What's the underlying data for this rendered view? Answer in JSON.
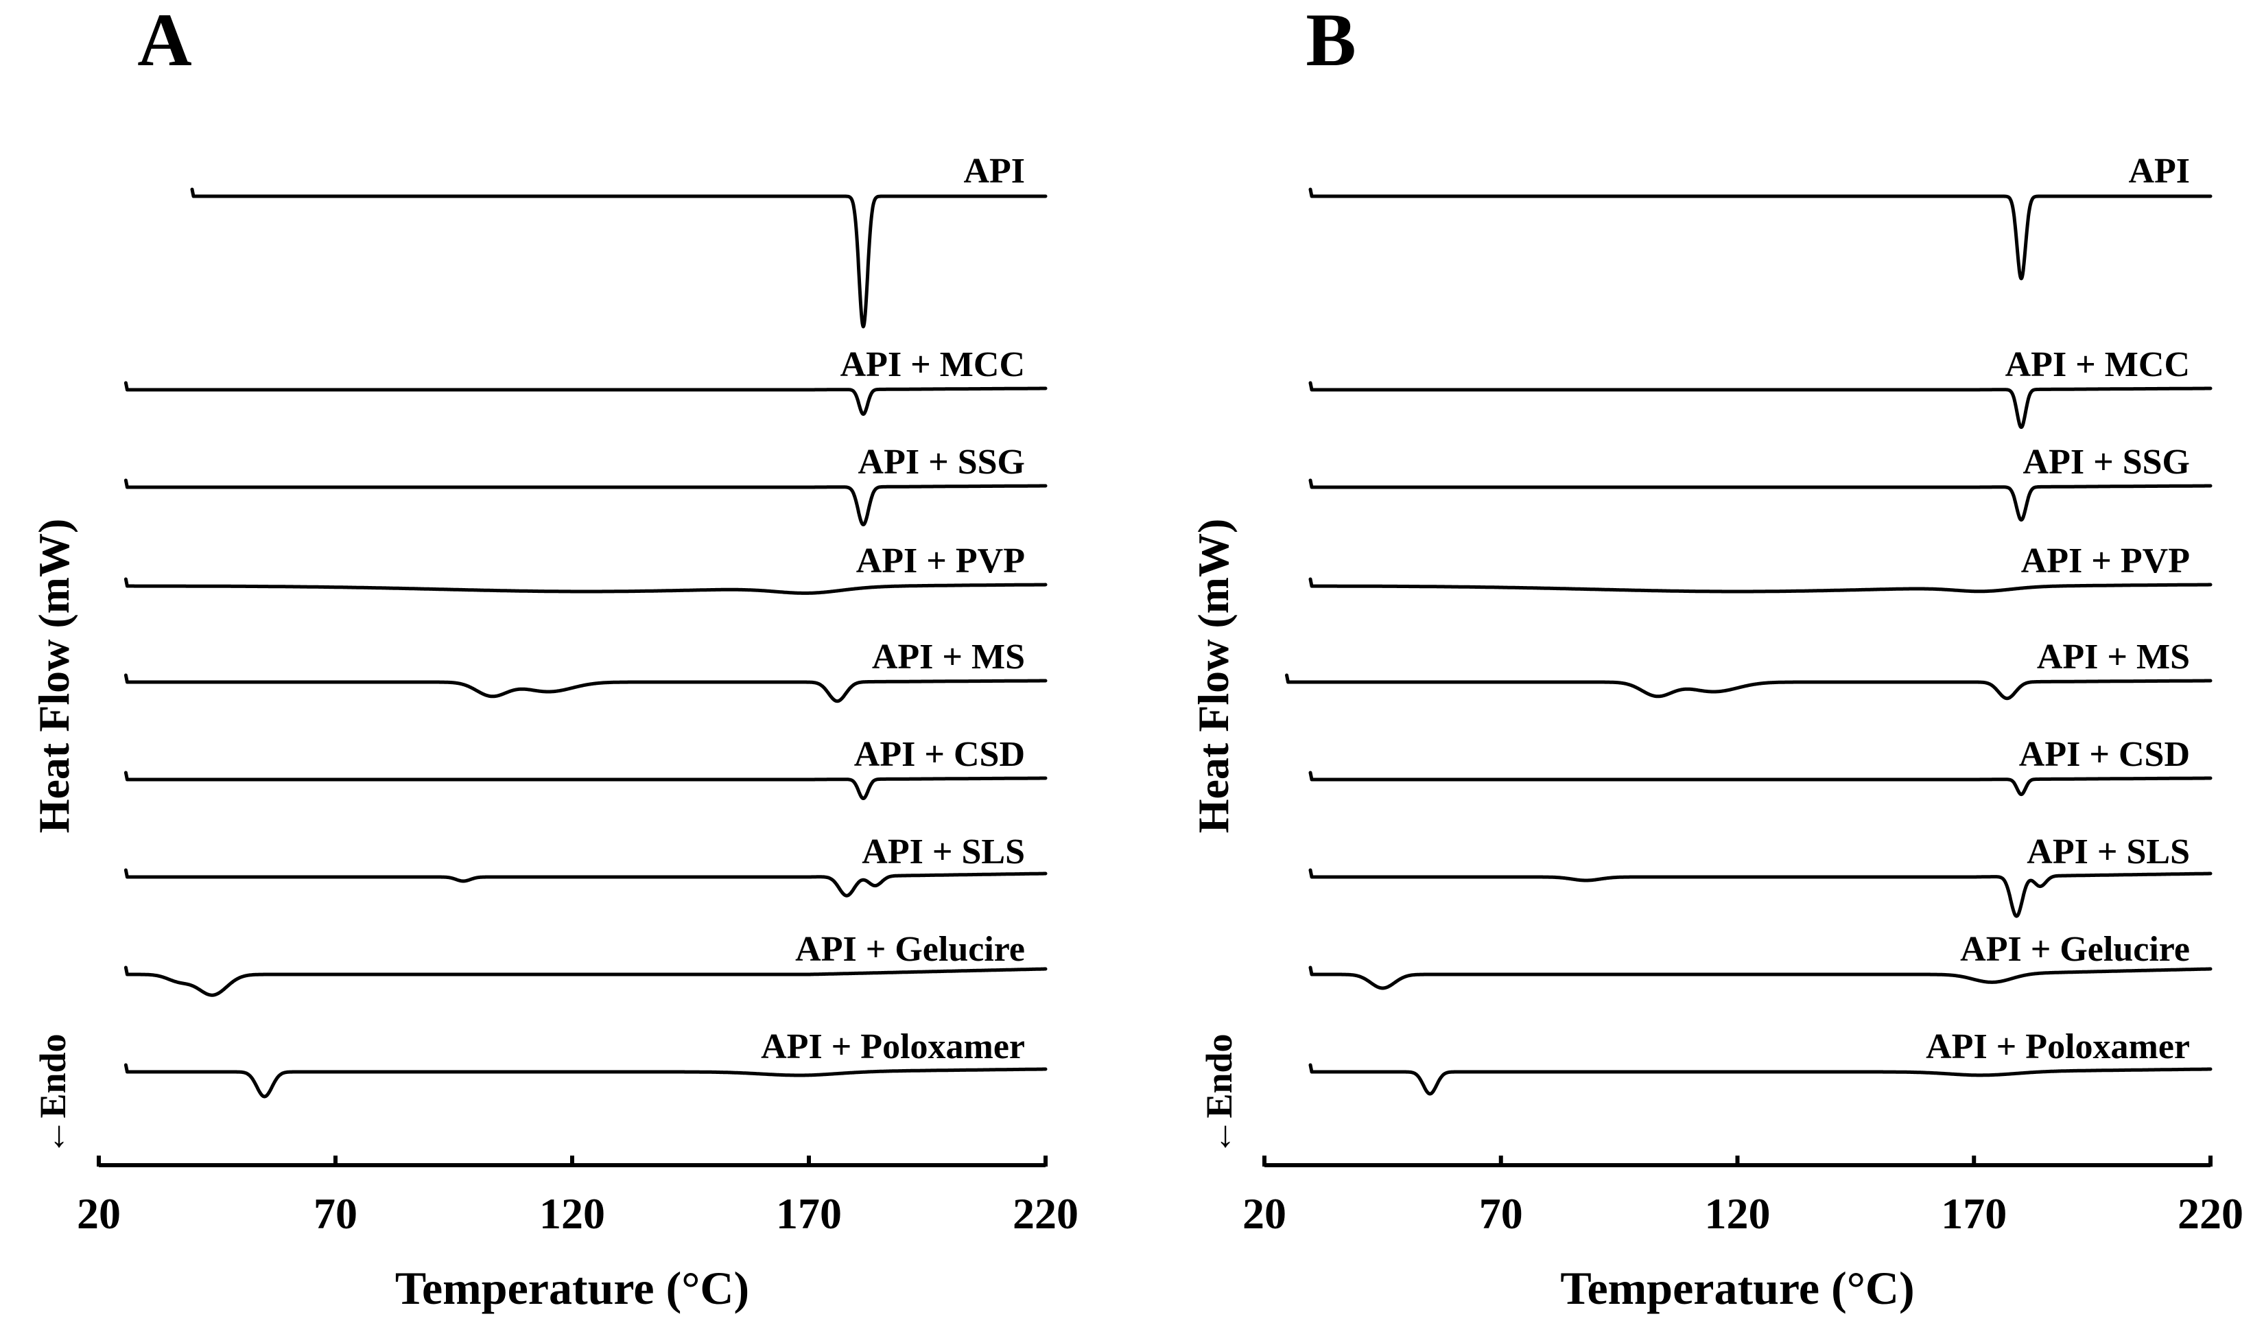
{
  "chart_data": [
    {
      "type": "line",
      "panel_label": "A",
      "xlabel": "Temperature (°C)",
      "ylabel": "Heat Flow (mW)",
      "endo_label": "←Endo",
      "xlim": [
        20,
        220
      ],
      "xticks": [
        20,
        70,
        120,
        170,
        220
      ],
      "series": [
        {
          "name": "API",
          "x_start": 40,
          "peaks": [
            {
              "x": 181.5,
              "depth": 190,
              "width": 0.9
            }
          ],
          "end_rise": 0
        },
        {
          "name": "API + MCC",
          "x_start": 26,
          "peaks": [
            {
              "x": 181.5,
              "depth": 36,
              "width": 0.9
            }
          ],
          "end_rise": 2
        },
        {
          "name": "API + SSG",
          "x_start": 26,
          "peaks": [
            {
              "x": 181.5,
              "depth": 55,
              "width": 1.1
            }
          ],
          "end_rise": 2
        },
        {
          "name": "API + PVP",
          "x_start": 26,
          "peaks": [
            {
              "x": 123,
              "depth": 8,
              "width": 30
            },
            {
              "x": 170,
              "depth": 8,
              "width": 7
            }
          ],
          "end_rise": 2
        },
        {
          "name": "API + MS",
          "x_start": 26,
          "peaks": [
            {
              "x": 103,
              "depth": 20,
              "width": 3.2
            },
            {
              "x": 115,
              "depth": 14,
              "width": 5
            },
            {
              "x": 176,
              "depth": 28,
              "width": 1.8
            }
          ],
          "end_rise": 2
        },
        {
          "name": "API + CSD",
          "x_start": 26,
          "peaks": [
            {
              "x": 181.5,
              "depth": 28,
              "width": 1
            }
          ],
          "end_rise": 2
        },
        {
          "name": "API + SLS",
          "x_start": 26,
          "peaks": [
            {
              "x": 97,
              "depth": 6,
              "width": 1.5
            },
            {
              "x": 178,
              "depth": 28,
              "width": 1.6
            },
            {
              "x": 184,
              "depth": 14,
              "width": 1.4
            }
          ],
          "end_rise": 5
        },
        {
          "name": "API + Gelucire",
          "x_start": 26,
          "peaks": [
            {
              "x": 44,
              "depth": 30,
              "width": 3
            },
            {
              "x": 37,
              "depth": 10,
              "width": 2.5
            }
          ],
          "end_rise": 8
        },
        {
          "name": "API + Poloxamer",
          "x_start": 26,
          "peaks": [
            {
              "x": 55,
              "depth": 36,
              "width": 1.6
            },
            {
              "x": 168,
              "depth": 5,
              "width": 8
            }
          ],
          "end_rise": 4
        }
      ]
    },
    {
      "type": "line",
      "panel_label": "B",
      "xlabel": "Temperature (°C)",
      "ylabel": "Heat Flow (mW)",
      "endo_label": "←Endo",
      "xlim": [
        20,
        220
      ],
      "xticks": [
        20,
        70,
        120,
        170,
        220
      ],
      "series": [
        {
          "name": "API",
          "x_start": 30,
          "peaks": [
            {
              "x": 180,
              "depth": 120,
              "width": 0.9
            }
          ],
          "end_rise": 0
        },
        {
          "name": "API + MCC",
          "x_start": 30,
          "peaks": [
            {
              "x": 180,
              "depth": 55,
              "width": 0.9
            }
          ],
          "end_rise": 2
        },
        {
          "name": "API + SSG",
          "x_start": 30,
          "peaks": [
            {
              "x": 180,
              "depth": 48,
              "width": 1
            }
          ],
          "end_rise": 2
        },
        {
          "name": "API + PVP",
          "x_start": 30,
          "peaks": [
            {
              "x": 120,
              "depth": 8,
              "width": 30
            },
            {
              "x": 172,
              "depth": 6,
              "width": 6
            }
          ],
          "end_rise": 2
        },
        {
          "name": "API + MS",
          "x_start": 25,
          "peaks": [
            {
              "x": 103,
              "depth": 20,
              "width": 3.2
            },
            {
              "x": 115,
              "depth": 14,
              "width": 5
            },
            {
              "x": 177,
              "depth": 24,
              "width": 1.8
            }
          ],
          "end_rise": 2
        },
        {
          "name": "API + CSD",
          "x_start": 30,
          "peaks": [
            {
              "x": 180,
              "depth": 22,
              "width": 0.9
            }
          ],
          "end_rise": 2
        },
        {
          "name": "API + SLS",
          "x_start": 30,
          "peaks": [
            {
              "x": 88,
              "depth": 5,
              "width": 3
            },
            {
              "x": 179,
              "depth": 58,
              "width": 1.2
            },
            {
              "x": 184,
              "depth": 15,
              "width": 1.2
            }
          ],
          "end_rise": 5
        },
        {
          "name": "API + Gelucire",
          "x_start": 30,
          "peaks": [
            {
              "x": 45,
              "depth": 20,
              "width": 2.5
            },
            {
              "x": 174,
              "depth": 12,
              "width": 4
            }
          ],
          "end_rise": 8
        },
        {
          "name": "API + Poloxamer",
          "x_start": 30,
          "peaks": [
            {
              "x": 55,
              "depth": 32,
              "width": 1.4
            },
            {
              "x": 172,
              "depth": 5,
              "width": 7
            }
          ],
          "end_rise": 4
        }
      ]
    }
  ]
}
